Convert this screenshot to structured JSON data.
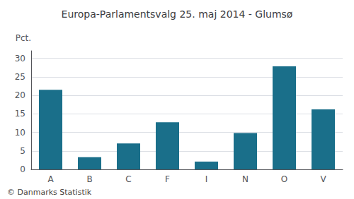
{
  "chart_data": {
    "type": "bar",
    "title": "Europa-Parlamentsvalg 25. maj 2014 - Glumsø",
    "categories": [
      "A",
      "B",
      "C",
      "F",
      "I",
      "N",
      "O",
      "V"
    ],
    "values": [
      21.5,
      3.3,
      7.0,
      12.7,
      2.1,
      9.8,
      27.8,
      16.2
    ],
    "color": "#1a6f8a",
    "ylabel": "Pct.",
    "ylim": [
      0,
      32
    ],
    "yticks": [
      0,
      5,
      10,
      15,
      20,
      25,
      30
    ],
    "grid": true,
    "annotations": [
      "© Danmarks Statistik"
    ]
  }
}
